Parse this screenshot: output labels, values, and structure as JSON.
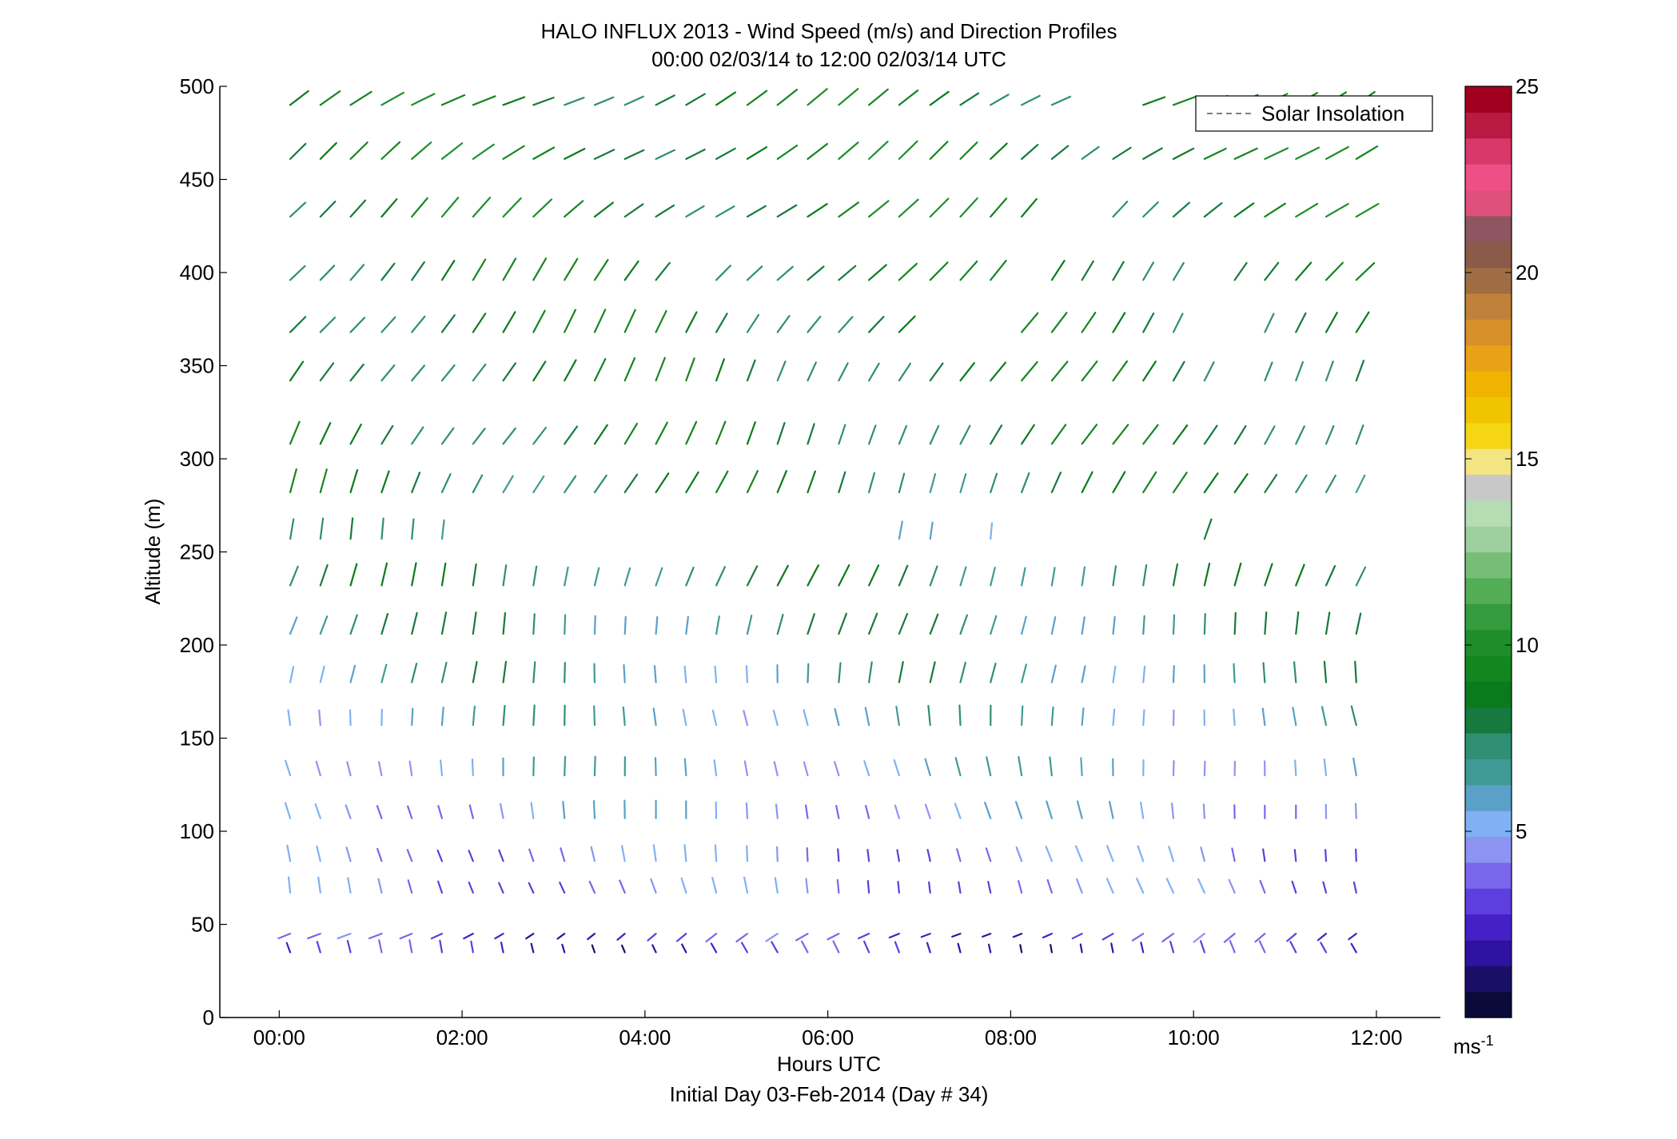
{
  "chart_data": {
    "type": "wind-barb-profile",
    "title": "HALO INFLUX 2013 - Wind Speed (m/s) and Direction Profiles",
    "subtitle": "00:00 02/03/14 to 12:00 02/03/14  UTC",
    "xlabel": "Hours UTC",
    "xlabel2": "Initial Day 03-Feb-2014 (Day # 34)",
    "ylabel": "Altitude (m)",
    "xlim_hours": [
      -0.65,
      12.7
    ],
    "ylim": [
      0,
      500
    ],
    "x_ticks": [
      {
        "hour": 0,
        "label": "00:00"
      },
      {
        "hour": 2,
        "label": "02:00"
      },
      {
        "hour": 4,
        "label": "04:00"
      },
      {
        "hour": 6,
        "label": "06:00"
      },
      {
        "hour": 8,
        "label": "08:00"
      },
      {
        "hour": 10,
        "label": "10:00"
      },
      {
        "hour": 12,
        "label": "12:00"
      }
    ],
    "y_ticks": [
      0,
      50,
      100,
      150,
      200,
      250,
      300,
      350,
      400,
      450,
      500
    ],
    "legend": {
      "entries": [
        "Solar Insolation"
      ],
      "placement": "top-right",
      "line_style": "dashed",
      "line_color": "#7f7f7f"
    },
    "colorbar": {
      "range": [
        0,
        25
      ],
      "ticks": [
        5,
        10,
        15,
        20,
        25
      ],
      "unit_label": "ms",
      "unit_exponent": "-1",
      "colors": [
        "#0b0b3a",
        "#1a0f66",
        "#2e12a0",
        "#4420c6",
        "#5d3ede",
        "#7a66ec",
        "#8c94f2",
        "#7fb1f4",
        "#5aa0c8",
        "#3f9a96",
        "#2e8f72",
        "#167a3e",
        "#0b7a1c",
        "#14861e",
        "#1f8e2a",
        "#349c3e",
        "#52ad55",
        "#76be78",
        "#9dd09e",
        "#b6dcb4",
        "#c8c8c8",
        "#f3e484",
        "#f5d514",
        "#f1c400",
        "#efb300",
        "#e9a118",
        "#d7902a",
        "#c0823a",
        "#a06d42",
        "#8a5a48",
        "#8d5660",
        "#e0507c",
        "#ef4f87",
        "#d8386a",
        "#b81a42",
        "#a1001e"
      ]
    },
    "sample_hours": [
      0.12,
      0.45,
      0.78,
      1.12,
      1.45,
      1.78,
      2.12,
      2.45,
      2.78,
      3.12,
      3.45,
      3.78,
      4.12,
      4.45,
      4.78,
      5.12,
      5.45,
      5.78,
      6.12,
      6.45,
      6.78,
      7.12,
      7.45,
      7.78,
      8.12,
      8.45,
      8.78,
      9.12,
      9.45,
      9.78,
      10.12,
      10.45,
      10.78,
      11.12,
      11.45,
      11.78
    ],
    "altitudes_m": [
      35,
      45,
      67,
      84,
      107,
      130,
      157,
      180,
      206,
      232,
      257,
      282,
      308,
      342,
      368,
      396,
      430,
      461,
      490
    ],
    "rows": [
      {
        "alt": 35,
        "speed": 2.5,
        "dir_deg": 340,
        "missing": []
      },
      {
        "alt": 45,
        "speed": 3.0,
        "dir_deg": 240,
        "missing": []
      },
      {
        "alt": 67,
        "speed": 4.0,
        "dir_deg": 345,
        "missing": []
      },
      {
        "alt": 84,
        "speed": 4.3,
        "dir_deg": 348,
        "missing": []
      },
      {
        "alt": 107,
        "speed": 5.0,
        "dir_deg": 350,
        "missing": []
      },
      {
        "alt": 130,
        "speed": 5.5,
        "dir_deg": 352,
        "missing": []
      },
      {
        "alt": 157,
        "speed": 6.0,
        "dir_deg": 355,
        "missing": []
      },
      {
        "alt": 180,
        "speed": 6.5,
        "dir_deg": 5,
        "missing": []
      },
      {
        "alt": 206,
        "speed": 7.0,
        "dir_deg": 12,
        "missing": []
      },
      {
        "alt": 232,
        "speed": 7.5,
        "dir_deg": 18,
        "missing": []
      },
      {
        "alt": 257,
        "speed": 6.5,
        "dir_deg": 15,
        "missing": [
          6,
          7,
          8,
          9,
          10,
          11,
          12,
          13,
          14,
          15,
          16,
          17,
          18,
          19,
          22,
          24,
          25,
          26,
          27,
          28,
          29,
          31,
          32,
          33,
          34,
          35
        ]
      },
      {
        "alt": 282,
        "speed": 8.0,
        "dir_deg": 25,
        "missing": []
      },
      {
        "alt": 308,
        "speed": 8.2,
        "dir_deg": 28,
        "missing": []
      },
      {
        "alt": 342,
        "speed": 8.3,
        "dir_deg": 30,
        "missing": [
          31
        ]
      },
      {
        "alt": 368,
        "speed": 8.5,
        "dir_deg": 35,
        "missing": [
          21,
          22,
          23,
          30,
          31
        ]
      },
      {
        "alt": 396,
        "speed": 8.5,
        "dir_deg": 40,
        "missing": [
          13,
          24,
          30
        ]
      },
      {
        "alt": 430,
        "speed": 8.8,
        "dir_deg": 50,
        "missing": [
          25,
          26
        ]
      },
      {
        "alt": 461,
        "speed": 8.8,
        "dir_deg": 55,
        "missing": []
      },
      {
        "alt": 490,
        "speed": 8.6,
        "dir_deg": 60,
        "missing": [
          26,
          27
        ]
      }
    ]
  }
}
